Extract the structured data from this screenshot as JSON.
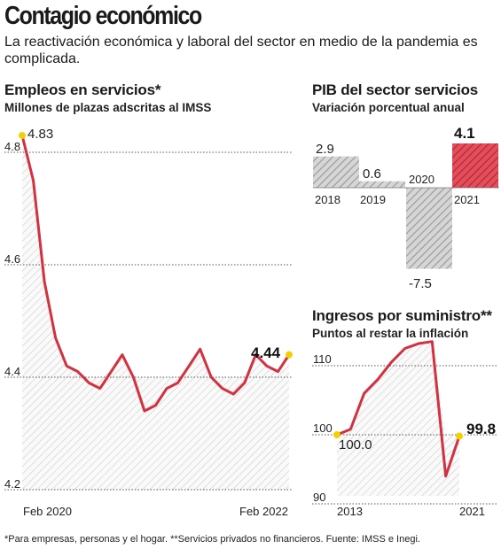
{
  "header": {
    "title": "Contagio económico",
    "subtitle": "La reactivación económica y laboral del sector en medio de la pandemia es complicada."
  },
  "footnote": "*Para empresas, personas y el hogar. **Servicios privados no financieros. Fuente: IMSS e Inegi.",
  "colors": {
    "line": "#d2313f",
    "grid": "#555555",
    "hatch": "#bbbbbb",
    "highlight": "#f5d000"
  },
  "chart_data": [
    {
      "type": "area",
      "title": "Empleos en servicios*",
      "subtitle": "Millones de plazas adscritas al IMSS",
      "ylim": [
        4.2,
        4.85
      ],
      "yticks": [
        "4.8",
        "4.6",
        "4.4",
        "4.2"
      ],
      "xlabels": [
        "Feb 2020",
        "Feb 2022"
      ],
      "values": [
        4.83,
        4.75,
        4.57,
        4.47,
        4.42,
        4.41,
        4.39,
        4.38,
        4.41,
        4.44,
        4.4,
        4.34,
        4.35,
        4.38,
        4.39,
        4.42,
        4.45,
        4.4,
        4.38,
        4.37,
        4.39,
        4.44,
        4.42,
        4.41,
        4.44
      ],
      "labels": {
        "start": "4.83",
        "end": "4.44"
      }
    },
    {
      "type": "bar",
      "title": "PIB del sector servicios",
      "subtitle": "Variación porcentual anual",
      "categories": [
        "2018",
        "2019",
        "2020",
        "2021"
      ],
      "values": [
        2.9,
        0.6,
        -7.5,
        4.1
      ],
      "labels": [
        "2.9",
        "0.6",
        "-7.5",
        "4.1"
      ]
    },
    {
      "type": "area",
      "title": "Ingresos por suministro**",
      "subtitle": "Puntos al restar la inflación",
      "ylim": [
        90,
        115
      ],
      "yticks": [
        "110",
        "100",
        "90"
      ],
      "xlabels": [
        "2013",
        "2021"
      ],
      "values": [
        100.0,
        100.8,
        106.0,
        108.0,
        110.5,
        112.5,
        113.2,
        113.5,
        94.0,
        99.8
      ],
      "labels": {
        "start": "100.0",
        "end": "99.8"
      }
    }
  ]
}
